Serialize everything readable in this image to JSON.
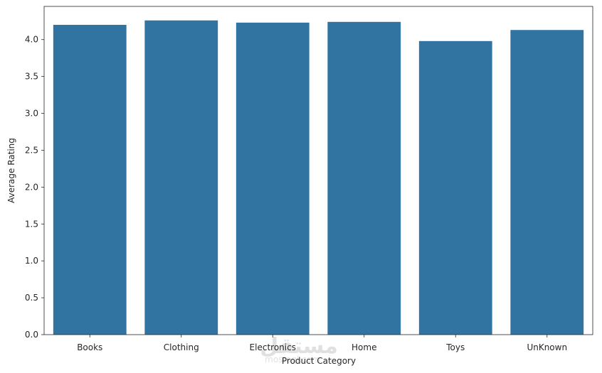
{
  "colors": {
    "bar": "#3274a1",
    "axis": "#262626",
    "background": "#ffffff"
  },
  "chart_data": {
    "type": "bar",
    "title": "",
    "xlabel": "Product Category",
    "ylabel": "Average Rating",
    "categories": [
      "Books",
      "Clothing",
      "Electronics",
      "Home",
      "Toys",
      "UnKnown"
    ],
    "values": [
      4.2,
      4.26,
      4.23,
      4.24,
      3.98,
      4.13
    ],
    "ylim": [
      0,
      4.45
    ],
    "yticks": [
      0.0,
      0.5,
      1.0,
      1.5,
      2.0,
      2.5,
      3.0,
      3.5,
      4.0
    ],
    "ytick_labels": [
      "0.0",
      "0.5",
      "1.0",
      "1.5",
      "2.0",
      "2.5",
      "3.0",
      "3.5",
      "4.0"
    ],
    "grid": false,
    "legend": "none"
  },
  "watermark": {
    "logo_text": "مستقل",
    "sub_text": "mostaql.com"
  }
}
